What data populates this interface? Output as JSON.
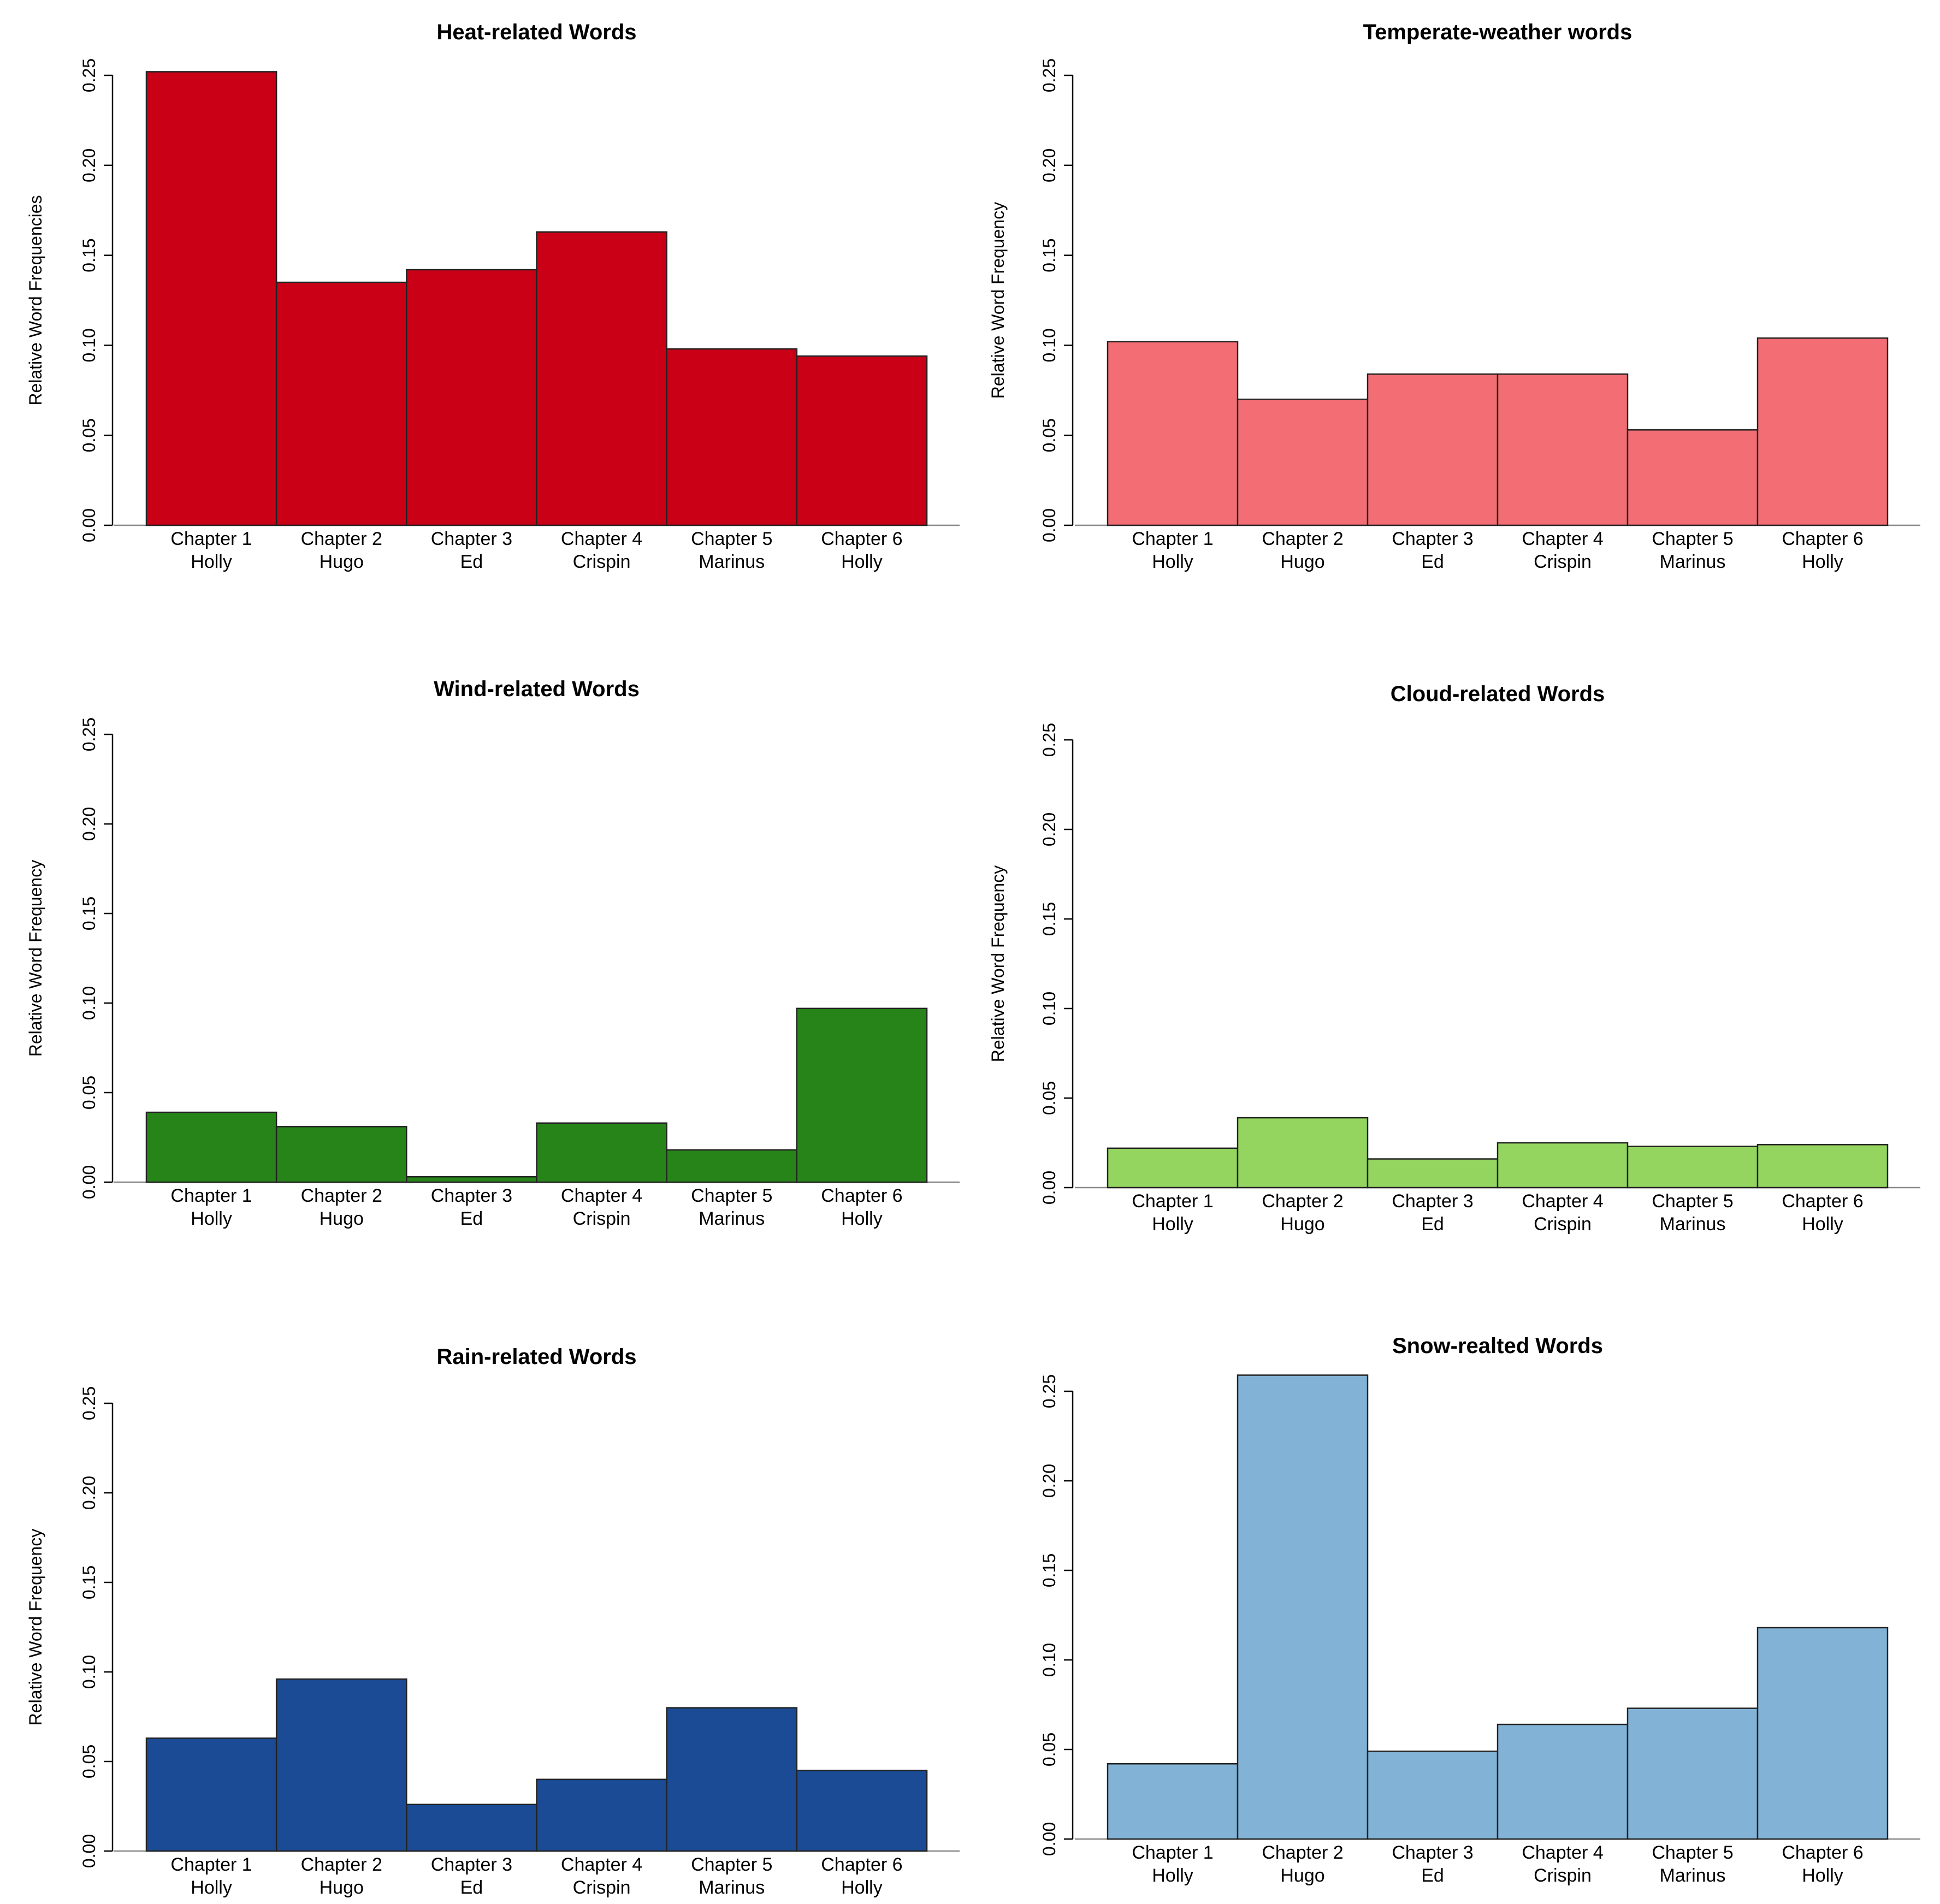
{
  "chart_data": [
    {
      "type": "bar",
      "title": "Heat-related Words",
      "ylabel": "Relative Word Frequencies",
      "color": "#c90016",
      "ylim": [
        0,
        0.25
      ],
      "yticks": [
        "0.00",
        "0.05",
        "0.10",
        "0.15",
        "0.20",
        "0.25"
      ],
      "categories": [
        [
          "Chapter 1",
          "Holly"
        ],
        [
          "Chapter 2",
          "Hugo"
        ],
        [
          "Chapter 3",
          "Ed"
        ],
        [
          "Chapter 4",
          "Crispin"
        ],
        [
          "Chapter 5",
          "Marinus"
        ],
        [
          "Chapter 6",
          "Holly"
        ]
      ],
      "values": [
        0.252,
        0.135,
        0.142,
        0.163,
        0.098,
        0.094
      ]
    },
    {
      "type": "bar",
      "title": "Temperate-weather words",
      "ylabel": "Relative Word Frequency",
      "color": "#f26e74",
      "ylim": [
        0,
        0.25
      ],
      "yticks": [
        "0.00",
        "0.05",
        "0.10",
        "0.15",
        "0.20",
        "0.25"
      ],
      "categories": [
        [
          "Chapter 1",
          "Holly"
        ],
        [
          "Chapter 2",
          "Hugo"
        ],
        [
          "Chapter 3",
          "Ed"
        ],
        [
          "Chapter 4",
          "Crispin"
        ],
        [
          "Chapter 5",
          "Marinus"
        ],
        [
          "Chapter 6",
          "Holly"
        ]
      ],
      "values": [
        0.102,
        0.07,
        0.084,
        0.084,
        0.053,
        0.104
      ]
    },
    {
      "type": "bar",
      "title": "Wind-related Words",
      "ylabel": "Relative Word Frequency",
      "color": "#278419",
      "ylim": [
        0,
        0.25
      ],
      "yticks": [
        "0.00",
        "0.05",
        "0.10",
        "0.15",
        "0.20",
        "0.25"
      ],
      "categories": [
        [
          "Chapter 1",
          "Holly"
        ],
        [
          "Chapter 2",
          "Hugo"
        ],
        [
          "Chapter 3",
          "Ed"
        ],
        [
          "Chapter 4",
          "Crispin"
        ],
        [
          "Chapter 5",
          "Marinus"
        ],
        [
          "Chapter 6",
          "Holly"
        ]
      ],
      "values": [
        0.039,
        0.031,
        0.003,
        0.033,
        0.018,
        0.097
      ]
    },
    {
      "type": "bar",
      "title": "Cloud-related Words",
      "ylabel": "Relative Word Frequency",
      "color": "#94d560",
      "ylim": [
        0,
        0.25
      ],
      "yticks": [
        "0.00",
        "0.05",
        "0.10",
        "0.15",
        "0.20",
        "0.25"
      ],
      "categories": [
        [
          "Chapter 1",
          "Holly"
        ],
        [
          "Chapter 2",
          "Hugo"
        ],
        [
          "Chapter 3",
          "Ed"
        ],
        [
          "Chapter 4",
          "Crispin"
        ],
        [
          "Chapter 5",
          "Marinus"
        ],
        [
          "Chapter 6",
          "Holly"
        ]
      ],
      "values": [
        0.022,
        0.039,
        0.016,
        0.025,
        0.023,
        0.024
      ]
    },
    {
      "type": "bar",
      "title": "Rain-related Words",
      "ylabel": "Relative Word Frequency",
      "color": "#1a4b94",
      "ylim": [
        0,
        0.25
      ],
      "yticks": [
        "0.00",
        "0.05",
        "0.10",
        "0.15",
        "0.20",
        "0.25"
      ],
      "categories": [
        [
          "Chapter 1",
          "Holly"
        ],
        [
          "Chapter 2",
          "Hugo"
        ],
        [
          "Chapter 3",
          "Ed"
        ],
        [
          "Chapter 4",
          "Crispin"
        ],
        [
          "Chapter 5",
          "Marinus"
        ],
        [
          "Chapter 6",
          "Holly"
        ]
      ],
      "values": [
        0.063,
        0.096,
        0.026,
        0.04,
        0.08,
        0.045
      ]
    },
    {
      "type": "bar",
      "title": "Snow-realted Words",
      "ylabel": "",
      "color": "#82b3d6",
      "ylim": [
        0,
        0.25
      ],
      "yticks": [
        "0.00",
        "0.05",
        "0.10",
        "0.15",
        "0.20",
        "0.25"
      ],
      "categories": [
        [
          "Chapter 1",
          "Holly"
        ],
        [
          "Chapter 2",
          "Hugo"
        ],
        [
          "Chapter 3",
          "Ed"
        ],
        [
          "Chapter 4",
          "Crispin"
        ],
        [
          "Chapter 5",
          "Marinus"
        ],
        [
          "Chapter 6",
          "Holly"
        ]
      ],
      "values": [
        0.042,
        0.259,
        0.049,
        0.064,
        0.073,
        0.118
      ]
    }
  ]
}
